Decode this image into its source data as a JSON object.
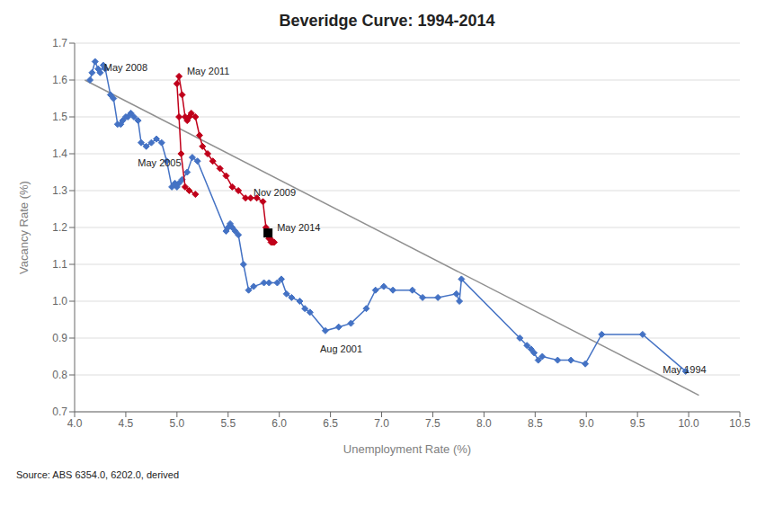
{
  "chart_data": {
    "type": "line",
    "title": "Beveridge Curve: 1994-2014",
    "xlabel": "Unemployment Rate (%)",
    "ylabel": "Vacancy Rate (%)",
    "source": "Source: ABS 6354.0, 6202.0, derived",
    "xlim": [
      4.0,
      10.5
    ],
    "ylim": [
      0.7,
      1.7
    ],
    "xticks": [
      {
        "value": 4.0,
        "label": "4.0"
      },
      4.5,
      {
        "value": 5.0,
        "label": "5.0"
      },
      5.5,
      {
        "value": 6.0,
        "label": "6.0"
      },
      6.5,
      {
        "value": 7.0,
        "label": "7.0"
      },
      7.5,
      {
        "value": 8.0,
        "label": "8.0"
      },
      8.5,
      {
        "value": 9.0,
        "label": "9.0"
      },
      9.5,
      {
        "value": 10.0,
        "label": "10.0"
      },
      10.5
    ],
    "yticks": [
      0.7,
      0.8,
      0.9,
      {
        "value": 1.0,
        "label": "1.0"
      },
      1.1,
      1.2,
      1.3,
      1.4,
      1.5,
      1.6,
      1.7
    ],
    "grid": true,
    "series": [
      {
        "type": "line",
        "color": "#909090",
        "marker": "none",
        "line_style": "solid",
        "x": [
          4.1,
          10.1
        ],
        "values": [
          1.6,
          0.745
        ]
      },
      {
        "type": "line",
        "color": "#4472C4",
        "marker": "diamond",
        "line_style": "solid",
        "x": [
          9.97,
          9.55,
          9.15,
          8.99,
          8.85,
          8.72,
          8.57,
          8.53,
          8.49,
          8.46,
          8.42,
          8.35,
          7.78,
          7.76,
          7.73,
          7.55,
          7.4,
          7.3,
          7.11,
          7.02,
          6.94,
          6.85,
          6.7,
          6.58,
          6.45,
          6.3,
          6.25,
          6.2,
          6.12,
          6.07,
          6.02,
          5.98,
          5.9,
          5.85,
          5.75,
          5.7,
          5.65,
          5.6,
          5.57,
          5.54,
          5.52,
          5.5,
          5.48,
          5.2,
          5.15,
          5.1,
          5.05,
          5.02,
          5.0,
          4.98,
          4.95,
          4.9,
          4.85,
          4.8,
          4.75,
          4.7,
          4.65,
          4.62,
          4.58,
          4.55,
          4.52,
          4.5,
          4.47,
          4.45,
          4.42,
          4.38,
          4.35,
          4.3,
          4.28,
          4.25,
          4.23,
          4.2,
          4.17,
          4.15
        ],
        "values": [
          0.81,
          0.91,
          0.91,
          0.83,
          0.84,
          0.84,
          0.85,
          0.84,
          0.86,
          0.87,
          0.88,
          0.9,
          1.06,
          1.0,
          1.02,
          1.01,
          1.01,
          1.03,
          1.03,
          1.04,
          1.03,
          0.98,
          0.94,
          0.93,
          0.92,
          0.97,
          0.98,
          1.0,
          1.01,
          1.02,
          1.06,
          1.05,
          1.05,
          1.05,
          1.04,
          1.03,
          1.1,
          1.18,
          1.19,
          1.2,
          1.21,
          1.2,
          1.19,
          1.38,
          1.39,
          1.35,
          1.33,
          1.32,
          1.31,
          1.32,
          1.31,
          1.38,
          1.43,
          1.44,
          1.43,
          1.42,
          1.43,
          1.49,
          1.5,
          1.51,
          1.5,
          1.5,
          1.49,
          1.48,
          1.48,
          1.55,
          1.56,
          1.63,
          1.64,
          1.62,
          1.63,
          1.65,
          1.62,
          1.6
        ]
      },
      {
        "type": "line",
        "color": "#C0001A",
        "marker": "diamond",
        "line_style": "solid",
        "x": [
          5.18,
          5.12,
          5.08,
          5.04,
          5.02,
          5.0,
          5.02,
          5.05,
          5.08,
          5.1,
          5.12,
          5.14,
          5.18,
          5.22,
          5.25,
          5.3,
          5.35,
          5.42,
          5.48,
          5.54,
          5.6,
          5.67,
          5.72,
          5.78,
          5.84,
          5.87,
          5.9,
          5.92,
          5.94,
          5.95,
          5.93,
          5.91,
          5.89
        ],
        "values": [
          1.29,
          1.3,
          1.31,
          1.4,
          1.5,
          1.59,
          1.61,
          1.56,
          1.5,
          1.49,
          1.5,
          1.51,
          1.5,
          1.45,
          1.42,
          1.4,
          1.38,
          1.36,
          1.34,
          1.31,
          1.3,
          1.28,
          1.28,
          1.28,
          1.27,
          1.2,
          1.17,
          1.16,
          1.16,
          1.16,
          1.16,
          1.17,
          1.18
        ]
      },
      {
        "type": "scatter",
        "color": "#000000",
        "marker": "square",
        "x": [
          5.89
        ],
        "values": [
          1.185
        ]
      }
    ],
    "annotations": [
      {
        "text": "May 2008",
        "x": 4.27,
        "y": 1.635
      },
      {
        "text": "May 2005",
        "x": 4.6,
        "y": 1.375
      },
      {
        "text": "May 2011",
        "x": 5.08,
        "y": 1.625
      },
      {
        "text": "Nov 2009",
        "x": 5.73,
        "y": 1.295
      },
      {
        "text": "May 2014",
        "x": 5.96,
        "y": 1.2
      },
      {
        "text": "Aug 2001",
        "x": 6.38,
        "y": 0.87
      },
      {
        "text": "May 1994",
        "x": 9.73,
        "y": 0.815
      }
    ]
  }
}
